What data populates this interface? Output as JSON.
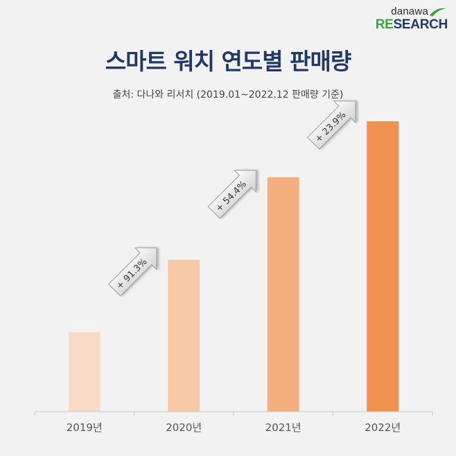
{
  "logo": {
    "top": "danawa",
    "bottom_a": "RE",
    "bottom_b": "SEARCH"
  },
  "chart_data": {
    "type": "bar",
    "title": "스마트 워치 연도별 판매량",
    "subtitle": "출처: 다나와 리서치 (2019.01~2022.12 판매량 기준)",
    "categories": [
      "2019년",
      "2020년",
      "2021년",
      "2022년"
    ],
    "values": [
      100,
      191.3,
      295.4,
      366.0
    ],
    "growth_labels": [
      "+ 91.3%",
      "+ 54.4%",
      "+ 23.9%"
    ],
    "ylim": [
      0,
      366
    ],
    "grid": false,
    "colors": [
      "#f9dac7",
      "#f7c9a6",
      "#f4ae80",
      "#ef914f"
    ]
  }
}
